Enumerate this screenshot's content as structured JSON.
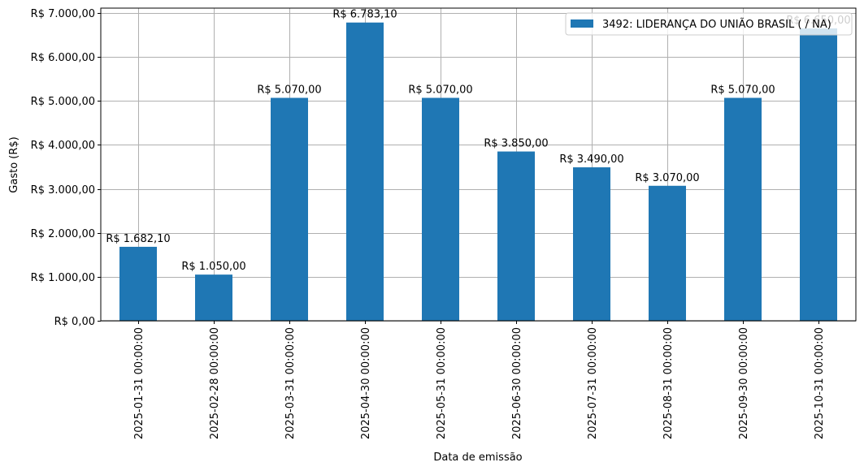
{
  "chart_data": {
    "type": "bar",
    "title": "",
    "xlabel": "Data de emissão",
    "ylabel": "Gasto (R$)",
    "ylim": [
      0,
      7000
    ],
    "grid": true,
    "legend_position": "upper right",
    "bar_color": "#1f77b4",
    "grid_color": "#b0b0b0",
    "categories": [
      "2025-01-31 00:00:00",
      "2025-02-28 00:00:00",
      "2025-03-31 00:00:00",
      "2025-04-30 00:00:00",
      "2025-05-31 00:00:00",
      "2025-06-30 00:00:00",
      "2025-07-31 00:00:00",
      "2025-08-31 00:00:00",
      "2025-09-30 00:00:00",
      "2025-10-31 00:00:00"
    ],
    "series": [
      {
        "name": "3492: LIDERANÇA DO UNIÃO BRASIL ( / NA)",
        "values": [
          1682.1,
          1050.0,
          5070.0,
          6783.1,
          5070.0,
          3850.0,
          3490.0,
          3070.0,
          5070.0,
          6650.0
        ],
        "labels": [
          "R$ 1.682,10",
          "R$ 1.050,00",
          "R$ 5.070,00",
          "R$ 6.783,10",
          "R$ 5.070,00",
          "R$ 3.850,00",
          "R$ 3.490,00",
          "R$ 3.070,00",
          "R$ 5.070,00",
          "R$ 6.650,00"
        ]
      }
    ],
    "yticks": [
      0,
      1000,
      2000,
      3000,
      4000,
      5000,
      6000,
      7000
    ],
    "ytick_labels": [
      "R$ 0,00",
      "R$ 1.000,00",
      "R$ 2.000,00",
      "R$ 3.000,00",
      "R$ 4.000,00",
      "R$ 5.000,00",
      "R$ 6.000,00",
      "R$ 7.000,00"
    ]
  }
}
